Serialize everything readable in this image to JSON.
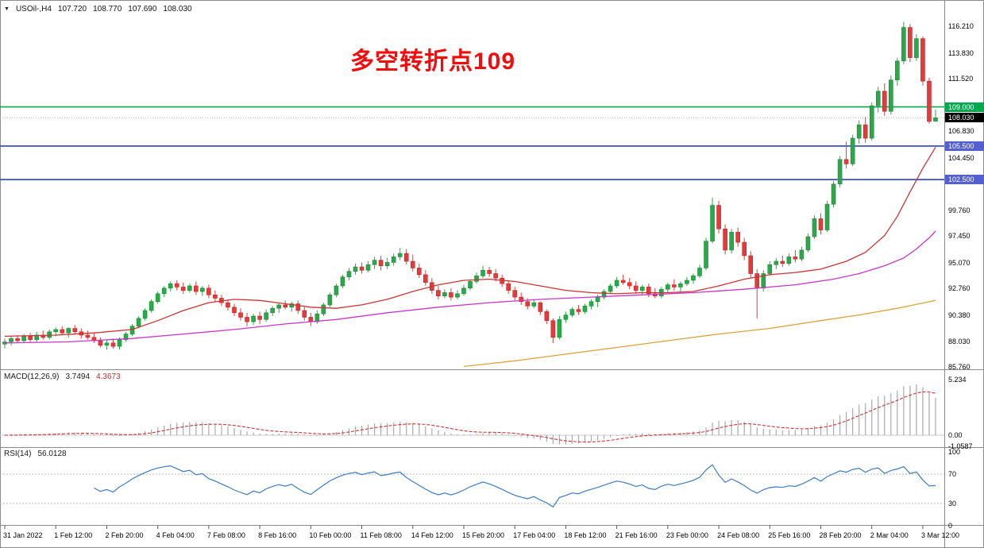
{
  "header": {
    "dropdown_icon": "▼",
    "symbol": "USOil-,H4",
    "open": "107.720",
    "high": "108.770",
    "low": "107.690",
    "close": "108.030"
  },
  "annotation": {
    "text": "多空转折点109",
    "color": "#f20c0c"
  },
  "colors": {
    "bull": "#2aa84a",
    "bull_stroke": "#1b8a38",
    "bear": "#e23b3b",
    "bear_stroke": "#c32424",
    "macd_hist": "#a9a9a9",
    "macd_signal": "#cc3333",
    "rsi_line": "#3e7bc0",
    "divider": "#8c8c8c",
    "current_line": "#b4b4b4"
  },
  "price_scale": {
    "ticks": [
      "116.210",
      "113.830",
      "111.520",
      "106.830",
      "104.450",
      "99.760",
      "97.450",
      "95.070",
      "92.760",
      "90.380",
      "88.030",
      "85.760"
    ],
    "current": {
      "label": "108.030",
      "value": 108.03,
      "bg": "#000000",
      "fg": "#ffffff"
    }
  },
  "indicators": {
    "macd": {
      "label": "MACD(12,26,9)",
      "value_main": "3.7494",
      "value_signal": "4.3673",
      "scale": [
        "5.234",
        "0.00",
        "-1.0587"
      ]
    },
    "rsi": {
      "label": "RSI(14)",
      "value": "56.0128",
      "scale": [
        "100",
        "70",
        "30",
        "0"
      ]
    }
  },
  "chart_data": {
    "type": "candlestick",
    "title": "USOil- H4",
    "ylim": [
      85.76,
      116.21
    ],
    "label_every_n_candles": 8,
    "x_labels": [
      "31 Jan 2022",
      "1 Feb 12:00",
      "2 Feb 20:00",
      "4 Feb 04:00",
      "7 Feb 08:00",
      "8 Feb 16:00",
      "10 Feb 00:00",
      "11 Feb 08:00",
      "14 Feb 12:00",
      "15 Feb 20:00",
      "17 Feb 04:00",
      "18 Feb 12:00",
      "21 Feb 16:00",
      "23 Feb 00:00",
      "24 Feb 08:00",
      "25 Feb 16:00",
      "28 Feb 20:00",
      "2 Mar 04:00",
      "3 Mar 12:00"
    ],
    "ohlc": [
      [
        87.8,
        88.3,
        87.4,
        88.0
      ],
      [
        88.0,
        88.5,
        87.7,
        88.3
      ],
      [
        88.3,
        88.6,
        87.9,
        88.1
      ],
      [
        88.1,
        88.7,
        87.9,
        88.5
      ],
      [
        88.5,
        88.8,
        88.0,
        88.2
      ],
      [
        88.2,
        88.9,
        88.0,
        88.6
      ],
      [
        88.6,
        89.0,
        88.2,
        88.4
      ],
      [
        88.4,
        89.1,
        88.2,
        88.9
      ],
      [
        88.9,
        89.3,
        88.5,
        89.1
      ],
      [
        89.1,
        89.4,
        88.6,
        88.8
      ],
      [
        88.8,
        89.3,
        88.4,
        89.2
      ],
      [
        89.2,
        89.5,
        88.7,
        88.9
      ],
      [
        88.9,
        89.2,
        88.3,
        88.6
      ],
      [
        88.6,
        89.0,
        88.2,
        88.4
      ],
      [
        88.4,
        88.8,
        87.9,
        88.1
      ],
      [
        88.1,
        88.4,
        87.5,
        87.7
      ],
      [
        87.7,
        88.2,
        87.3,
        87.9
      ],
      [
        87.9,
        88.3,
        87.4,
        87.6
      ],
      [
        87.6,
        88.4,
        87.3,
        88.2
      ],
      [
        88.2,
        88.9,
        88.0,
        88.7
      ],
      [
        88.7,
        89.6,
        88.5,
        89.4
      ],
      [
        89.4,
        90.3,
        89.2,
        90.1
      ],
      [
        90.1,
        91.0,
        89.9,
        90.8
      ],
      [
        90.8,
        91.8,
        90.6,
        91.6
      ],
      [
        91.6,
        92.5,
        91.4,
        92.3
      ],
      [
        92.3,
        93.0,
        92.0,
        92.8
      ],
      [
        92.8,
        93.4,
        92.5,
        93.2
      ],
      [
        93.2,
        93.5,
        92.6,
        92.9
      ],
      [
        92.9,
        93.3,
        92.3,
        92.6
      ],
      [
        92.6,
        93.2,
        92.4,
        93.0
      ],
      [
        93.0,
        93.4,
        92.2,
        92.5
      ],
      [
        92.5,
        93.0,
        92.1,
        92.8
      ],
      [
        92.8,
        93.1,
        91.9,
        92.2
      ],
      [
        92.2,
        92.6,
        91.6,
        91.9
      ],
      [
        91.9,
        92.2,
        91.2,
        91.5
      ],
      [
        91.5,
        91.8,
        90.8,
        91.1
      ],
      [
        91.1,
        91.4,
        90.3,
        90.6
      ],
      [
        90.6,
        91.0,
        89.9,
        90.2
      ],
      [
        90.2,
        90.6,
        89.4,
        89.8
      ],
      [
        89.8,
        90.5,
        89.5,
        90.3
      ],
      [
        90.3,
        90.7,
        89.6,
        90.0
      ],
      [
        90.0,
        90.9,
        89.8,
        90.6
      ],
      [
        90.6,
        91.2,
        90.3,
        91.0
      ],
      [
        91.0,
        91.5,
        90.6,
        91.3
      ],
      [
        91.3,
        91.7,
        90.9,
        91.1
      ],
      [
        91.1,
        91.6,
        90.7,
        91.4
      ],
      [
        91.4,
        91.7,
        90.5,
        90.8
      ],
      [
        90.8,
        91.1,
        89.9,
        90.2
      ],
      [
        90.2,
        90.6,
        89.4,
        89.8
      ],
      [
        89.8,
        90.8,
        89.6,
        90.5
      ],
      [
        90.5,
        91.5,
        90.3,
        91.3
      ],
      [
        91.3,
        92.4,
        91.1,
        92.2
      ],
      [
        92.2,
        93.2,
        92.0,
        93.0
      ],
      [
        93.0,
        94.0,
        92.8,
        93.8
      ],
      [
        93.8,
        94.6,
        93.5,
        94.3
      ],
      [
        94.3,
        95.0,
        94.0,
        94.7
      ],
      [
        94.7,
        95.1,
        94.1,
        94.4
      ],
      [
        94.4,
        95.2,
        94.2,
        94.9
      ],
      [
        94.9,
        95.6,
        94.5,
        95.3
      ],
      [
        95.3,
        95.7,
        94.4,
        94.8
      ],
      [
        94.8,
        95.5,
        94.5,
        95.1
      ],
      [
        95.1,
        95.9,
        94.8,
        95.6
      ],
      [
        95.6,
        96.4,
        95.3,
        95.9
      ],
      [
        95.9,
        96.3,
        94.9,
        95.2
      ],
      [
        95.2,
        95.8,
        94.3,
        94.6
      ],
      [
        94.6,
        95.0,
        93.7,
        94.0
      ],
      [
        94.0,
        94.4,
        93.0,
        93.3
      ],
      [
        93.3,
        93.7,
        92.3,
        92.6
      ],
      [
        92.6,
        93.0,
        91.8,
        92.1
      ],
      [
        92.1,
        92.7,
        91.9,
        92.4
      ],
      [
        92.4,
        92.8,
        91.7,
        92.0
      ],
      [
        92.0,
        92.6,
        91.8,
        92.3
      ],
      [
        92.3,
        93.1,
        92.1,
        92.8
      ],
      [
        92.8,
        93.6,
        92.6,
        93.4
      ],
      [
        93.4,
        94.2,
        93.2,
        93.9
      ],
      [
        93.9,
        94.8,
        93.7,
        94.4
      ],
      [
        94.4,
        94.7,
        93.8,
        94.1
      ],
      [
        94.1,
        94.5,
        93.4,
        93.7
      ],
      [
        93.7,
        94.0,
        92.9,
        93.2
      ],
      [
        93.2,
        93.5,
        92.3,
        92.6
      ],
      [
        92.6,
        92.9,
        91.7,
        92.0
      ],
      [
        92.0,
        92.4,
        91.3,
        91.6
      ],
      [
        91.6,
        91.9,
        90.9,
        91.2
      ],
      [
        91.2,
        91.8,
        91.0,
        91.5
      ],
      [
        91.5,
        91.6,
        90.4,
        90.7
      ],
      [
        90.7,
        90.9,
        89.6,
        89.9
      ],
      [
        89.9,
        90.1,
        87.9,
        88.4
      ],
      [
        88.4,
        90.3,
        88.2,
        90.0
      ],
      [
        90.0,
        90.7,
        89.7,
        90.4
      ],
      [
        90.4,
        91.1,
        90.2,
        90.9
      ],
      [
        90.9,
        91.3,
        90.4,
        90.7
      ],
      [
        90.7,
        91.4,
        90.5,
        91.2
      ],
      [
        91.2,
        91.8,
        90.9,
        91.6
      ],
      [
        91.6,
        92.2,
        91.1,
        92.0
      ],
      [
        92.0,
        92.7,
        91.8,
        92.5
      ],
      [
        92.5,
        93.2,
        92.3,
        93.0
      ],
      [
        93.0,
        93.8,
        92.8,
        93.5
      ],
      [
        93.5,
        94.0,
        93.1,
        93.3
      ],
      [
        93.3,
        93.7,
        92.7,
        93.0
      ],
      [
        93.0,
        93.4,
        92.3,
        92.6
      ],
      [
        92.6,
        93.1,
        92.2,
        92.9
      ],
      [
        92.9,
        93.2,
        92.0,
        92.3
      ],
      [
        92.3,
        92.8,
        91.9,
        92.1
      ],
      [
        92.1,
        92.9,
        91.9,
        92.7
      ],
      [
        92.7,
        93.3,
        92.4,
        93.1
      ],
      [
        93.1,
        93.6,
        92.6,
        92.9
      ],
      [
        92.9,
        93.4,
        92.5,
        93.2
      ],
      [
        93.2,
        93.8,
        93.0,
        93.5
      ],
      [
        93.5,
        94.1,
        93.2,
        93.9
      ],
      [
        93.9,
        94.9,
        93.7,
        94.6
      ],
      [
        94.6,
        97.3,
        94.4,
        97.0
      ],
      [
        97.0,
        100.9,
        96.8,
        100.2
      ],
      [
        100.2,
        100.6,
        97.7,
        98.1
      ],
      [
        98.1,
        98.5,
        95.8,
        96.2
      ],
      [
        96.2,
        98.1,
        95.9,
        97.8
      ],
      [
        97.8,
        98.2,
        96.5,
        96.9
      ],
      [
        96.9,
        97.3,
        95.3,
        95.7
      ],
      [
        95.7,
        96.1,
        93.7,
        94.1
      ],
      [
        94.1,
        94.5,
        90.1,
        92.8
      ],
      [
        92.8,
        94.4,
        92.5,
        94.1
      ],
      [
        94.1,
        95.2,
        93.9,
        94.9
      ],
      [
        94.9,
        95.5,
        94.5,
        95.2
      ],
      [
        95.2,
        95.7,
        94.7,
        95.0
      ],
      [
        95.0,
        95.9,
        94.8,
        95.6
      ],
      [
        95.6,
        96.2,
        95.1,
        95.4
      ],
      [
        95.4,
        96.5,
        95.2,
        96.2
      ],
      [
        96.2,
        97.7,
        96.0,
        97.4
      ],
      [
        97.4,
        99.3,
        97.2,
        99.0
      ],
      [
        99.0,
        99.5,
        97.6,
        98.0
      ],
      [
        98.0,
        100.6,
        97.8,
        100.3
      ],
      [
        100.3,
        102.4,
        100.0,
        102.1
      ],
      [
        102.1,
        104.6,
        101.8,
        104.3
      ],
      [
        104.3,
        105.9,
        103.5,
        103.9
      ],
      [
        103.9,
        106.5,
        103.7,
        106.2
      ],
      [
        106.2,
        107.8,
        105.7,
        107.4
      ],
      [
        107.4,
        108.1,
        105.8,
        106.2
      ],
      [
        106.2,
        109.4,
        106.0,
        109.1
      ],
      [
        109.1,
        110.8,
        108.5,
        110.4
      ],
      [
        110.4,
        111.1,
        108.2,
        108.6
      ],
      [
        108.6,
        111.8,
        108.3,
        111.4
      ],
      [
        111.4,
        113.4,
        110.9,
        113.1
      ],
      [
        113.1,
        116.6,
        112.8,
        116.1
      ],
      [
        116.1,
        116.4,
        113.0,
        113.4
      ],
      [
        113.4,
        115.5,
        113.1,
        115.1
      ],
      [
        115.1,
        115.3,
        110.9,
        111.3
      ],
      [
        111.3,
        111.6,
        107.5,
        107.7
      ],
      [
        107.72,
        108.77,
        107.69,
        108.03
      ]
    ],
    "overlays": [
      {
        "name": "ma-fast-red",
        "color": "#cc3333",
        "points": [
          [
            0,
            88.5
          ],
          [
            8,
            88.6
          ],
          [
            14,
            88.8
          ],
          [
            20,
            89.1
          ],
          [
            24,
            89.9
          ],
          [
            28,
            90.8
          ],
          [
            32,
            91.5
          ],
          [
            36,
            91.8
          ],
          [
            40,
            91.7
          ],
          [
            44,
            91.4
          ],
          [
            48,
            91.1
          ],
          [
            52,
            91.0
          ],
          [
            56,
            91.3
          ],
          [
            60,
            91.8
          ],
          [
            64,
            92.5
          ],
          [
            68,
            93.1
          ],
          [
            72,
            93.5
          ],
          [
            76,
            93.6
          ],
          [
            80,
            93.4
          ],
          [
            84,
            93.0
          ],
          [
            88,
            92.6
          ],
          [
            92,
            92.4
          ],
          [
            96,
            92.3
          ],
          [
            100,
            92.4
          ],
          [
            104,
            92.4
          ],
          [
            108,
            92.5
          ],
          [
            112,
            93.0
          ],
          [
            116,
            93.6
          ],
          [
            120,
            94.0
          ],
          [
            124,
            94.2
          ],
          [
            128,
            94.5
          ],
          [
            132,
            95.2
          ],
          [
            135,
            96.0
          ],
          [
            138,
            97.5
          ],
          [
            140,
            99.2
          ],
          [
            142,
            101.4
          ],
          [
            144,
            103.5
          ],
          [
            146,
            105.4
          ]
        ]
      },
      {
        "name": "ma-mid-magenta",
        "color": "#c837c8",
        "points": [
          [
            0,
            87.9
          ],
          [
            10,
            88.0
          ],
          [
            20,
            88.3
          ],
          [
            28,
            88.7
          ],
          [
            36,
            89.1
          ],
          [
            44,
            89.6
          ],
          [
            52,
            90.0
          ],
          [
            60,
            90.6
          ],
          [
            68,
            91.1
          ],
          [
            76,
            91.5
          ],
          [
            84,
            91.8
          ],
          [
            92,
            92.0
          ],
          [
            100,
            92.2
          ],
          [
            108,
            92.4
          ],
          [
            116,
            92.7
          ],
          [
            124,
            93.1
          ],
          [
            130,
            93.6
          ],
          [
            134,
            94.1
          ],
          [
            138,
            94.8
          ],
          [
            141,
            95.5
          ],
          [
            143,
            96.3
          ],
          [
            145,
            97.3
          ],
          [
            146,
            97.9
          ]
        ]
      },
      {
        "name": "ma-slow-orange",
        "color": "#d9a23b",
        "points": [
          [
            72,
            85.8
          ],
          [
            80,
            86.3
          ],
          [
            88,
            86.9
          ],
          [
            96,
            87.5
          ],
          [
            104,
            88.1
          ],
          [
            112,
            88.7
          ],
          [
            120,
            89.2
          ],
          [
            128,
            89.9
          ],
          [
            134,
            90.4
          ],
          [
            140,
            91.0
          ],
          [
            146,
            91.7
          ]
        ]
      }
    ],
    "hlines": [
      {
        "price": 109.0,
        "label": "109.000",
        "color": "#00a94f",
        "label_bg": "#00a94f",
        "label_fg": "#ffffff",
        "width": 1.6
      },
      {
        "price": 105.5,
        "label": "105.500",
        "color": "#3d4fc4",
        "label_bg": "#5560cf",
        "label_fg": "#ffffff",
        "width": 1.8
      },
      {
        "price": 102.5,
        "label": "102.500",
        "color": "#3d4fc4",
        "label_bg": "#5560cf",
        "label_fg": "#ffffff",
        "width": 1.8
      }
    ],
    "sub_charts": [
      {
        "type": "macd",
        "derived_from": "ohlc_closes",
        "params": [
          12,
          26,
          9
        ],
        "last_values": [
          3.7494,
          4.3673
        ],
        "y_range": [
          -1.0587,
          5.234
        ]
      },
      {
        "type": "rsi",
        "derived_from": "ohlc_closes",
        "period": 14,
        "last_value": 56.0128,
        "y_range": [
          0,
          100
        ],
        "levels": [
          70,
          30
        ]
      }
    ]
  }
}
